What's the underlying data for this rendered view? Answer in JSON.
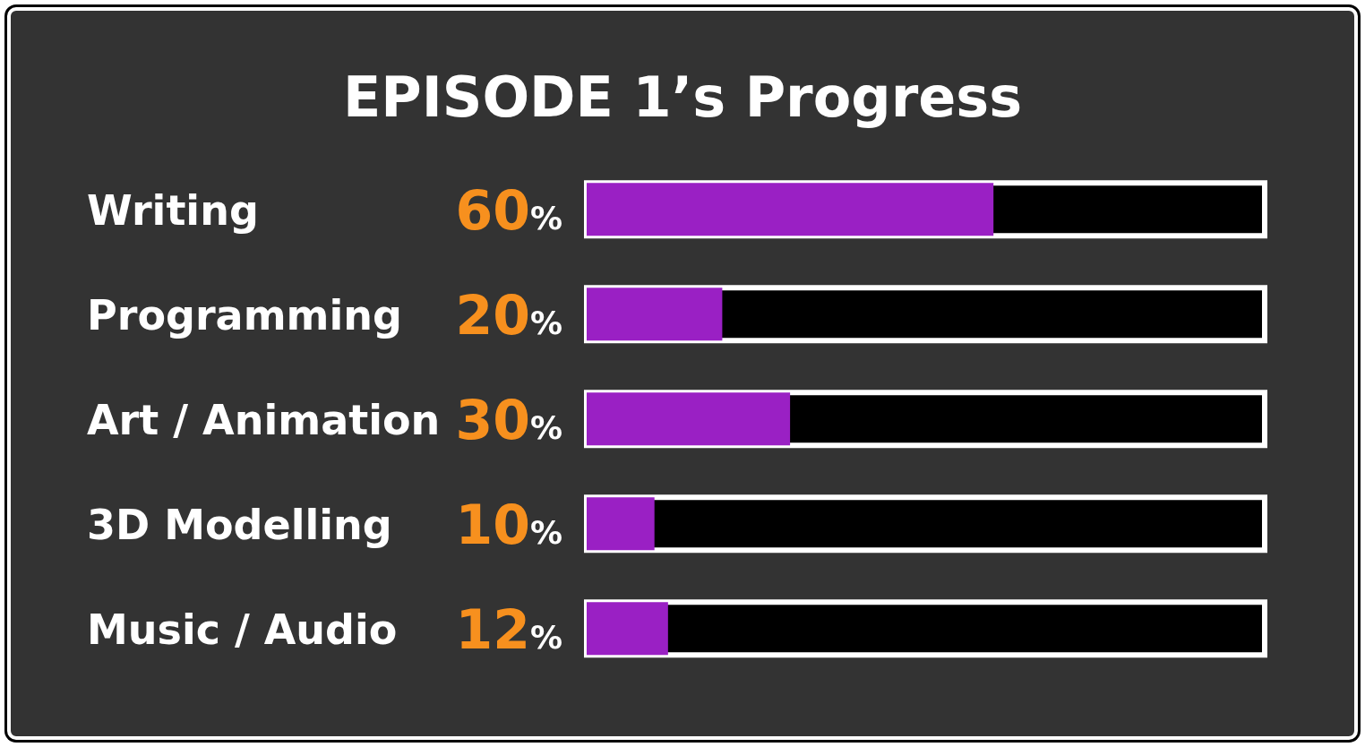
{
  "chart_data": {
    "type": "bar",
    "orientation": "horizontal",
    "title": "EPISODE 1’s Progress",
    "categories": [
      "Writing",
      "Programming",
      "Art / Animation",
      "3D Modelling",
      "Music / Audio"
    ],
    "values": [
      60,
      20,
      30,
      10,
      12
    ],
    "value_labels": [
      "60%",
      "20%",
      "30%",
      "10%",
      "12%"
    ],
    "color": "#9a20c4",
    "xlim": [
      0,
      100
    ]
  }
}
